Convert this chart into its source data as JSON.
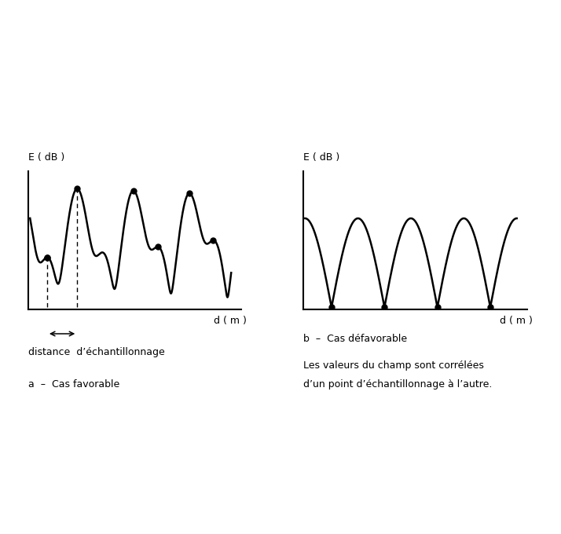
{
  "background_color": "#ffffff",
  "left_plot": {
    "ylabel": "E ( dB )",
    "xlabel": "d ( m )",
    "label_a": "a  –  Cas favorable",
    "arrow_label": "distance  d’échantillonnage"
  },
  "right_plot": {
    "ylabel": "E ( dB )",
    "xlabel": "d ( m )",
    "label_b": "b  –  Cas défavorable",
    "caption_line1": "Les valeurs du champ sont corrélées",
    "caption_line2": "d’un point d’échantillonnage à l’autre."
  },
  "line_color": "#000000",
  "dot_color": "#000000",
  "dot_size": 5,
  "linewidth": 1.8
}
